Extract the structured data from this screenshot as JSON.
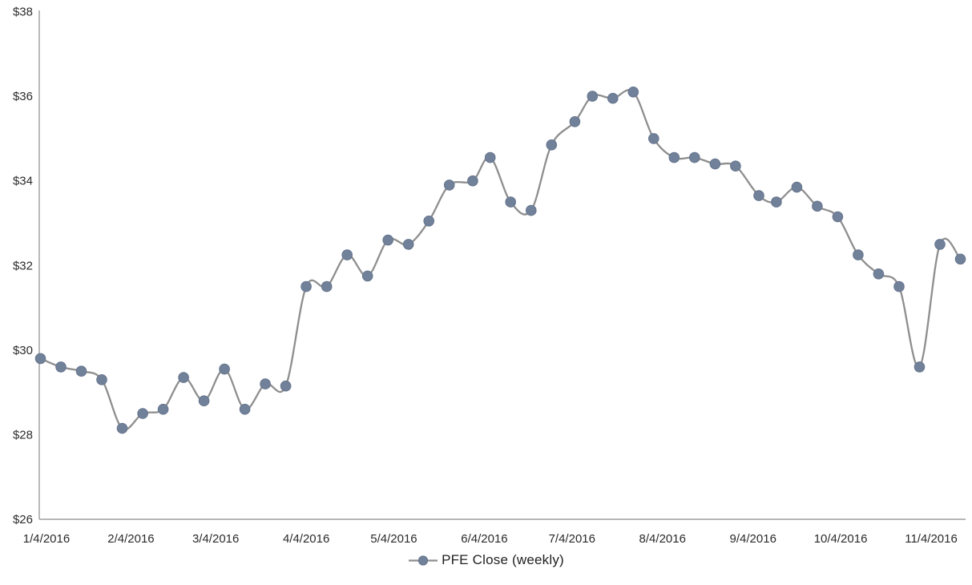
{
  "chart_data": {
    "type": "line",
    "title": "",
    "legend": "PFE Close (weekly)",
    "legend_position": "bottom-center",
    "grid": false,
    "smoothed": true,
    "marker": "circle",
    "series_name": "PFE Close (weekly)",
    "x": [
      "1/4/2016",
      "1/11/2016",
      "1/18/2016",
      "1/25/2016",
      "2/1/2016",
      "2/8/2016",
      "2/15/2016",
      "2/22/2016",
      "2/29/2016",
      "3/7/2016",
      "3/14/2016",
      "3/21/2016",
      "3/28/2016",
      "4/4/2016",
      "4/11/2016",
      "4/18/2016",
      "4/25/2016",
      "5/2/2016",
      "5/9/2016",
      "5/16/2016",
      "5/23/2016",
      "5/31/2016",
      "6/6/2016",
      "6/13/2016",
      "6/20/2016",
      "6/27/2016",
      "7/5/2016",
      "7/11/2016",
      "7/18/2016",
      "7/25/2016",
      "8/1/2016",
      "8/8/2016",
      "8/15/2016",
      "8/22/2016",
      "8/29/2016",
      "9/6/2016",
      "9/12/2016",
      "9/19/2016",
      "9/26/2016",
      "10/3/2016",
      "10/10/2016",
      "10/17/2016",
      "10/24/2016",
      "10/31/2016",
      "11/7/2016",
      "11/14/2016"
    ],
    "values": [
      29.8,
      29.6,
      29.5,
      29.3,
      28.15,
      28.5,
      28.6,
      29.35,
      28.8,
      29.55,
      28.6,
      29.2,
      29.15,
      31.5,
      31.5,
      32.25,
      31.75,
      32.6,
      32.5,
      33.05,
      33.9,
      34.0,
      34.55,
      33.5,
      33.3,
      34.85,
      35.4,
      36.0,
      35.95,
      36.1,
      35.0,
      34.55,
      34.55,
      34.4,
      34.35,
      33.65,
      33.5,
      33.85,
      33.4,
      33.15,
      32.25,
      31.8,
      31.5,
      29.6,
      32.5,
      32.15
    ],
    "ylim": [
      26,
      38
    ],
    "yticks": [
      38,
      36,
      34,
      32,
      30,
      28,
      26
    ],
    "ytick_labels": [
      "$38",
      "$36",
      "$34",
      "$32",
      "$30",
      "$28",
      "$26"
    ],
    "xticks": [
      "1/4/2016",
      "2/4/2016",
      "3/4/2016",
      "4/4/2016",
      "5/4/2016",
      "6/4/2016",
      "7/4/2016",
      "8/4/2016",
      "9/4/2016",
      "10/4/2016",
      "11/4/2016"
    ],
    "xtick_labels": [
      "1/4/2016",
      "2/4/2016",
      "3/4/2016",
      "4/4/2016",
      "5/4/2016",
      "6/4/2016",
      "7/4/2016",
      "8/4/2016",
      "9/4/2016",
      "10/4/2016",
      "11/4/2016"
    ],
    "colors": {
      "line": "#8e8e8e",
      "marker_fill": "#72819a",
      "marker_stroke": "#64748c",
      "axis": "#9d9d9d",
      "tick_text": "#2b2b2b",
      "legend_text": "#1f1f1f",
      "background": "#ffffff"
    }
  }
}
